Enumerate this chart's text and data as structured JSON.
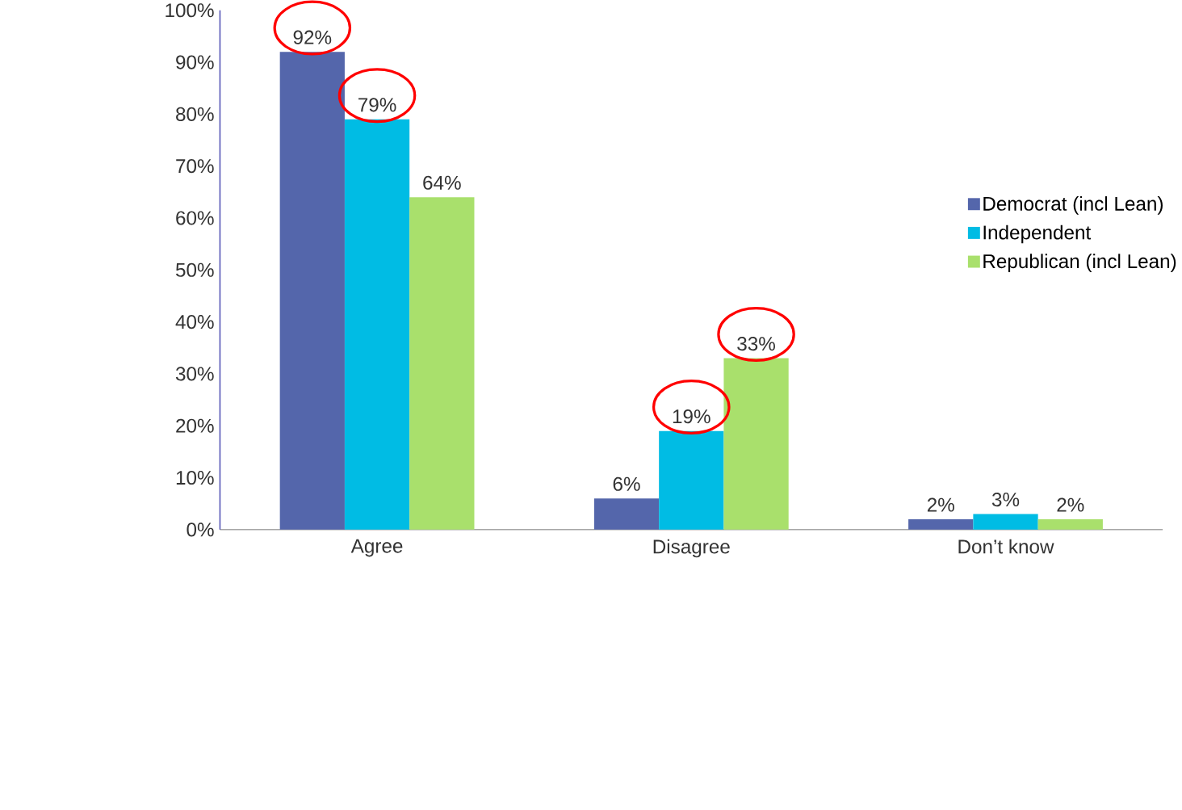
{
  "chart_data": {
    "type": "bar",
    "categories": [
      "Agree",
      "Disagree",
      "Don’t know"
    ],
    "series": [
      {
        "name": "Democrat (incl Lean)",
        "color": "#5466ab",
        "values": [
          92,
          6,
          2
        ],
        "value_labels": [
          "92%",
          "6%",
          "2%"
        ]
      },
      {
        "name": "Independent",
        "color": "#00bce4",
        "values": [
          79,
          19,
          3
        ],
        "value_labels": [
          "79%",
          "19%",
          "3%"
        ]
      },
      {
        "name": "Republican (incl Lean)",
        "color": "#a9e06c",
        "values": [
          64,
          33,
          2
        ],
        "value_labels": [
          "64%",
          "33%",
          "2%"
        ]
      }
    ],
    "ylim": [
      0,
      100
    ],
    "yticks": [
      {
        "value": 0,
        "label": "0%"
      },
      {
        "value": 10,
        "label": "10%"
      },
      {
        "value": 20,
        "label": "20%"
      },
      {
        "value": 30,
        "label": "30%"
      },
      {
        "value": 40,
        "label": "40%"
      },
      {
        "value": 50,
        "label": "50%"
      },
      {
        "value": 60,
        "label": "60%"
      },
      {
        "value": 70,
        "label": "70%"
      },
      {
        "value": 80,
        "label": "80%"
      },
      {
        "value": 90,
        "label": "90%"
      },
      {
        "value": 100,
        "label": "100%"
      }
    ],
    "grid": false,
    "legend": "right"
  }
}
